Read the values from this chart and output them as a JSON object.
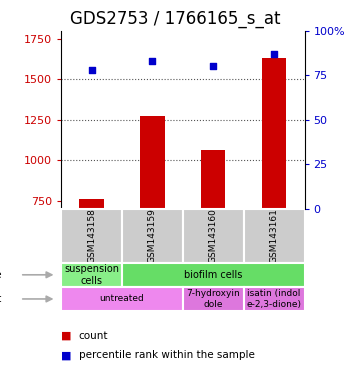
{
  "title": "GDS2753 / 1766165_s_at",
  "samples": [
    "GSM143158",
    "GSM143159",
    "GSM143160",
    "GSM143161"
  ],
  "counts": [
    760,
    1270,
    1060,
    1630
  ],
  "percentiles": [
    78,
    83,
    80,
    87
  ],
  "ylim_left": [
    700,
    1800
  ],
  "ylim_right": [
    0,
    100
  ],
  "yticks_left": [
    750,
    1000,
    1250,
    1500,
    1750
  ],
  "yticks_right": [
    0,
    25,
    50,
    75,
    100
  ],
  "bar_color": "#cc0000",
  "dot_color": "#0000cc",
  "bar_bottom": 700,
  "cell_type_labels": [
    "suspension\ncells",
    "biofilm cells"
  ],
  "cell_type_colors": [
    "#88ee88",
    "#66dd66"
  ],
  "cell_type_spans": [
    1,
    3
  ],
  "agent_labels": [
    "untreated",
    "7-hydroxyin\ndole",
    "isatin (indol\ne-2,3-dione)"
  ],
  "agent_colors": [
    "#ee88ee",
    "#dd77dd",
    "#dd77dd"
  ],
  "agent_spans": [
    2,
    1,
    1
  ],
  "gsm_box_color": "#cccccc",
  "title_fontsize": 12,
  "axis_label_color_left": "#cc0000",
  "axis_label_color_right": "#0000cc",
  "dotted_line_color": "#555555",
  "background_color": "#ffffff"
}
